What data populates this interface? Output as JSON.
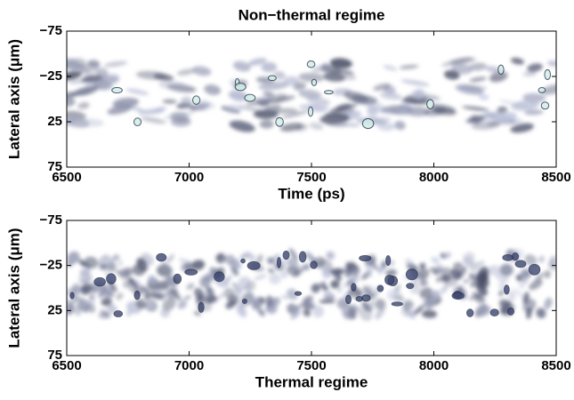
{
  "chart_data": [
    {
      "type": "heatmap",
      "title": "Non−thermal regime",
      "xlabel": "Time (ps)",
      "ylabel": "Lateral axis (μm)",
      "xlim": [
        6500,
        8500
      ],
      "xticks": [
        6500,
        7000,
        7500,
        8000,
        8500
      ],
      "ylim": [
        75,
        -75
      ],
      "yticks": [
        {
          "value": -75,
          "label": "−75"
        },
        {
          "value": -25,
          "label": "−25"
        },
        25,
        75
      ]
    },
    {
      "type": "heatmap",
      "xlabel": "Thermal regime",
      "ylabel": "Lateral axis (μm)",
      "xlim": [
        6500,
        8500
      ],
      "xticks": [
        6500,
        7000,
        7500,
        8000,
        8500
      ],
      "ylim": [
        75,
        -75
      ],
      "yticks": [
        {
          "value": -75,
          "label": "−75"
        },
        {
          "value": -25,
          "label": "−25"
        },
        25,
        75
      ]
    }
  ]
}
